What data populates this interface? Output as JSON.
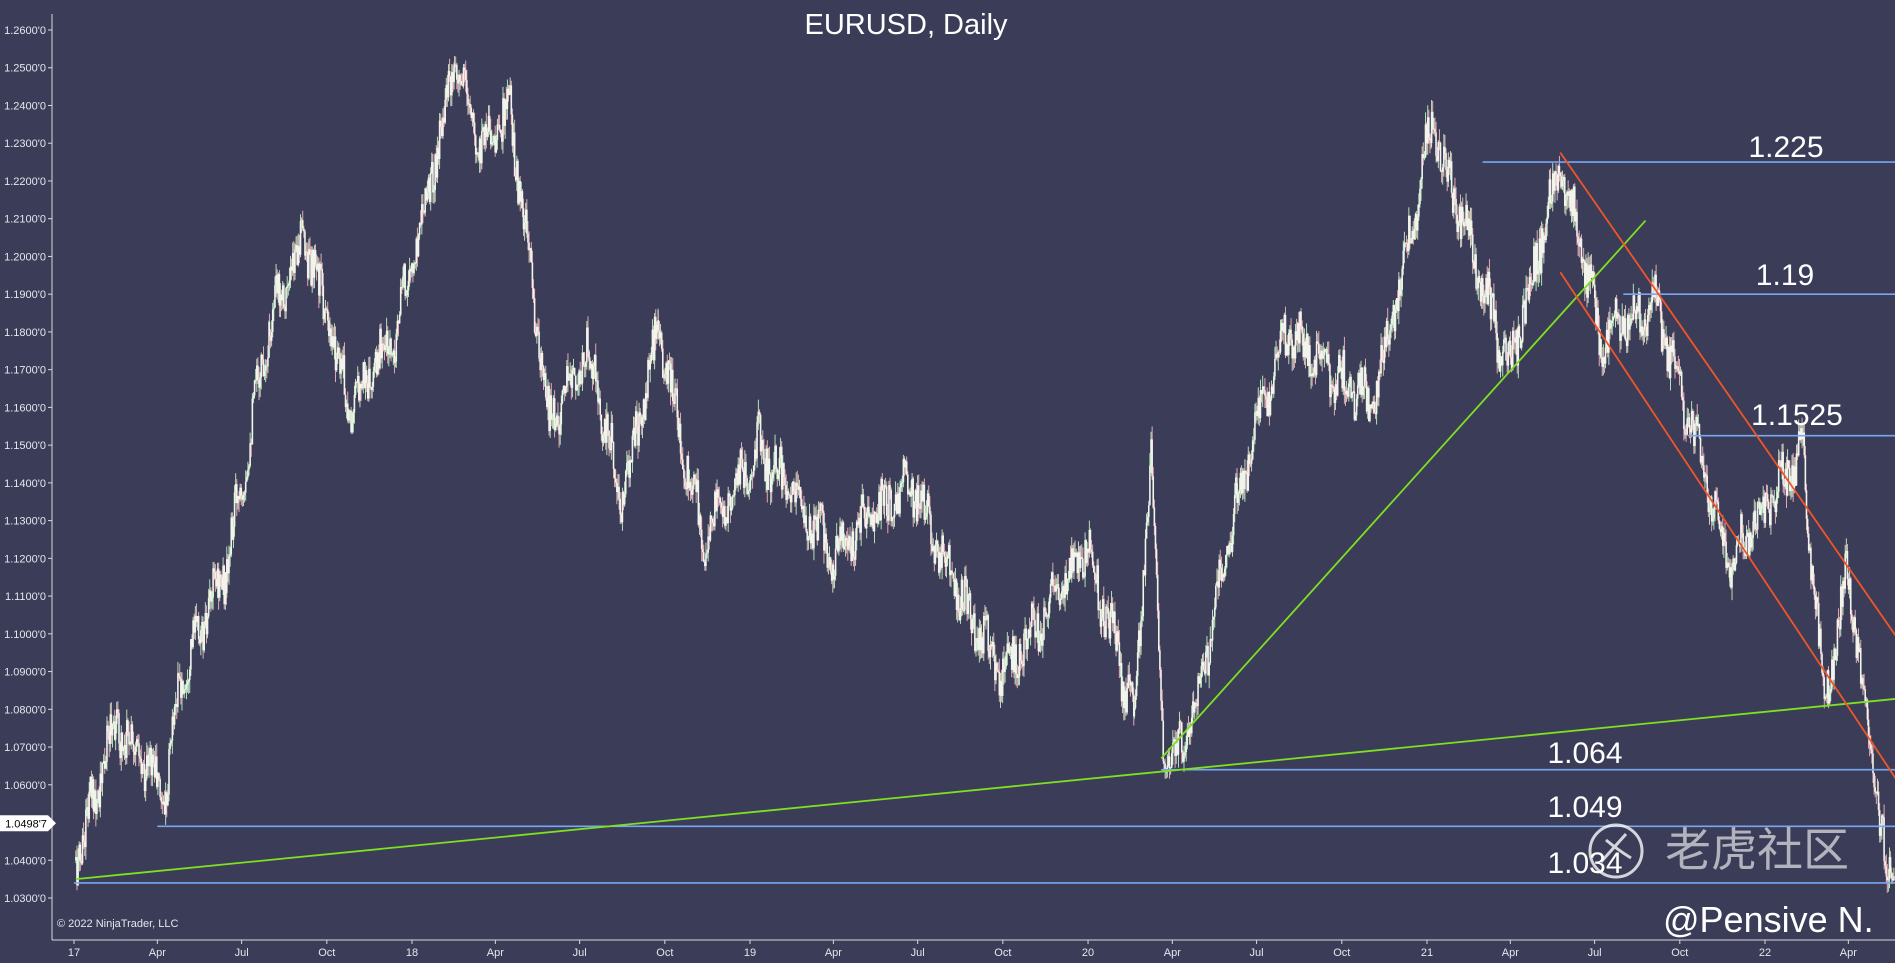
{
  "chart_data": {
    "type": "candlestick",
    "title": "EURUSD, Daily",
    "ylim": [
      1.025,
      1.265
    ],
    "y_ticks": [
      "1.2600'0",
      "1.2500'0",
      "1.2400'0",
      "1.2300'0",
      "1.2200'0",
      "1.2100'0",
      "1.2000'0",
      "1.1900'0",
      "1.1800'0",
      "1.1700'0",
      "1.1600'0",
      "1.1500'0",
      "1.1400'0",
      "1.1300'0",
      "1.1200'0",
      "1.1100'0",
      "1.1000'0",
      "1.0900'0",
      "1.0800'0",
      "1.0700'0",
      "1.0600'0",
      "1.0400'0",
      "1.0300'0"
    ],
    "y_tick_values": [
      1.26,
      1.25,
      1.24,
      1.23,
      1.22,
      1.21,
      1.2,
      1.19,
      1.18,
      1.17,
      1.16,
      1.15,
      1.14,
      1.13,
      1.12,
      1.11,
      1.1,
      1.09,
      1.08,
      1.07,
      1.06,
      1.04,
      1.03
    ],
    "x_ticks": [
      {
        "label": "17",
        "date": "2017-01-01"
      },
      {
        "label": "Apr",
        "date": "2017-04-01"
      },
      {
        "label": "Jul",
        "date": "2017-07-01"
      },
      {
        "label": "Oct",
        "date": "2017-10-01"
      },
      {
        "label": "18",
        "date": "2018-01-01"
      },
      {
        "label": "Apr",
        "date": "2018-04-01"
      },
      {
        "label": "Jul",
        "date": "2018-07-01"
      },
      {
        "label": "Oct",
        "date": "2018-10-01"
      },
      {
        "label": "19",
        "date": "2019-01-01"
      },
      {
        "label": "Apr",
        "date": "2019-04-01"
      },
      {
        "label": "Jul",
        "date": "2019-07-01"
      },
      {
        "label": "Oct",
        "date": "2019-10-01"
      },
      {
        "label": "20",
        "date": "2020-01-01"
      },
      {
        "label": "Apr",
        "date": "2020-04-01"
      },
      {
        "label": "Jul",
        "date": "2020-07-01"
      },
      {
        "label": "Oct",
        "date": "2020-10-01"
      },
      {
        "label": "21",
        "date": "2021-01-01"
      },
      {
        "label": "Apr",
        "date": "2021-04-01"
      },
      {
        "label": "Jul",
        "date": "2021-07-01"
      },
      {
        "label": "Oct",
        "date": "2021-10-01"
      },
      {
        "label": "22",
        "date": "2022-01-01"
      },
      {
        "label": "Apr",
        "date": "2022-04-01"
      }
    ],
    "price_path": [
      {
        "date": "2017-01-03",
        "close": 1.04
      },
      {
        "date": "2017-02-15",
        "close": 1.077
      },
      {
        "date": "2017-04-10",
        "close": 1.058
      },
      {
        "date": "2017-04-24",
        "close": 1.087
      },
      {
        "date": "2017-06-15",
        "close": 1.118
      },
      {
        "date": "2017-07-31",
        "close": 1.183
      },
      {
        "date": "2017-09-08",
        "close": 1.205
      },
      {
        "date": "2017-10-26",
        "close": 1.16
      },
      {
        "date": "2017-12-15",
        "close": 1.18
      },
      {
        "date": "2018-02-16",
        "close": 1.25
      },
      {
        "date": "2018-03-15",
        "close": 1.23
      },
      {
        "date": "2018-04-17",
        "close": 1.238
      },
      {
        "date": "2018-05-29",
        "close": 1.155
      },
      {
        "date": "2018-07-10",
        "close": 1.175
      },
      {
        "date": "2018-08-15",
        "close": 1.135
      },
      {
        "date": "2018-09-24",
        "close": 1.18
      },
      {
        "date": "2018-11-12",
        "close": 1.125
      },
      {
        "date": "2019-01-10",
        "close": 1.15
      },
      {
        "date": "2019-04-01",
        "close": 1.122
      },
      {
        "date": "2019-06-25",
        "close": 1.14
      },
      {
        "date": "2019-08-15",
        "close": 1.11
      },
      {
        "date": "2019-10-01",
        "close": 1.09
      },
      {
        "date": "2019-12-31",
        "close": 1.122
      },
      {
        "date": "2020-02-20",
        "close": 1.079
      },
      {
        "date": "2020-03-09",
        "close": 1.149
      },
      {
        "date": "2020-03-23",
        "close": 1.064
      },
      {
        "date": "2020-04-24",
        "close": 1.078
      },
      {
        "date": "2020-06-10",
        "close": 1.136
      },
      {
        "date": "2020-07-31",
        "close": 1.18
      },
      {
        "date": "2020-11-04",
        "close": 1.16
      },
      {
        "date": "2021-01-06",
        "close": 1.234
      },
      {
        "date": "2021-03-31",
        "close": 1.17
      },
      {
        "date": "2021-05-25",
        "close": 1.226
      },
      {
        "date": "2021-07-08",
        "close": 1.178
      },
      {
        "date": "2021-09-03",
        "close": 1.188
      },
      {
        "date": "2021-11-24",
        "close": 1.12
      },
      {
        "date": "2022-02-10",
        "close": 1.148
      },
      {
        "date": "2022-03-07",
        "close": 1.081
      },
      {
        "date": "2022-03-31",
        "close": 1.118
      },
      {
        "date": "2022-05-13",
        "close": 1.035
      },
      {
        "date": "2022-05-31",
        "close": 1.0498
      }
    ],
    "horizontal_levels": [
      {
        "label": "1.225",
        "value": 1.225,
        "start_date": "2021-03-02",
        "color": "#79a6f0"
      },
      {
        "label": "1.19",
        "value": 1.19,
        "start_date": "2021-08-01",
        "color": "#79a6f0"
      },
      {
        "label": "1.1525",
        "value": 1.1525,
        "start_date": "2021-10-10",
        "color": "#79a6f0"
      },
      {
        "label": "1.064",
        "value": 1.064,
        "start_date": "2020-03-20",
        "color": "#79a6f0"
      },
      {
        "label": "1.049",
        "value": 1.049,
        "start_date": "2017-04-01",
        "color": "#79a6f0"
      },
      {
        "label": "1.034",
        "value": 1.034,
        "start_date": "2017-01-01",
        "color": "#79a6f0"
      }
    ],
    "trend_lines": [
      {
        "color": "#7ee021",
        "from": {
          "date": "2017-01-03",
          "value": 1.035
        },
        "to": {
          "date": "2022-06-01",
          "value": 1.083
        }
      },
      {
        "color": "#7ee021",
        "from": {
          "date": "2020-03-20",
          "value": 1.067
        },
        "to": {
          "date": "2021-08-25",
          "value": 1.2095
        }
      },
      {
        "color": "#ef5528",
        "from": {
          "date": "2021-05-25",
          "value": 1.2275
        },
        "to": {
          "date": "2022-06-01",
          "value": 1.096
        }
      },
      {
        "color": "#ef5528",
        "from": {
          "date": "2021-05-25",
          "value": 1.1958
        },
        "to": {
          "date": "2022-06-01",
          "value": 1.058
        }
      }
    ],
    "current_price_tag": "1.0498'7",
    "grid": false,
    "colors": {
      "background": "#3b3d58",
      "candle_body": "#f2f4ec",
      "candle_up": "#c3f0c3",
      "candle_down": "#f3b6c0",
      "axis_line": "#d7d9e2"
    }
  },
  "copyright": "© 2022 NinjaTrader, LLC",
  "watermark": "老虎社区",
  "credit": "@Pensive N."
}
